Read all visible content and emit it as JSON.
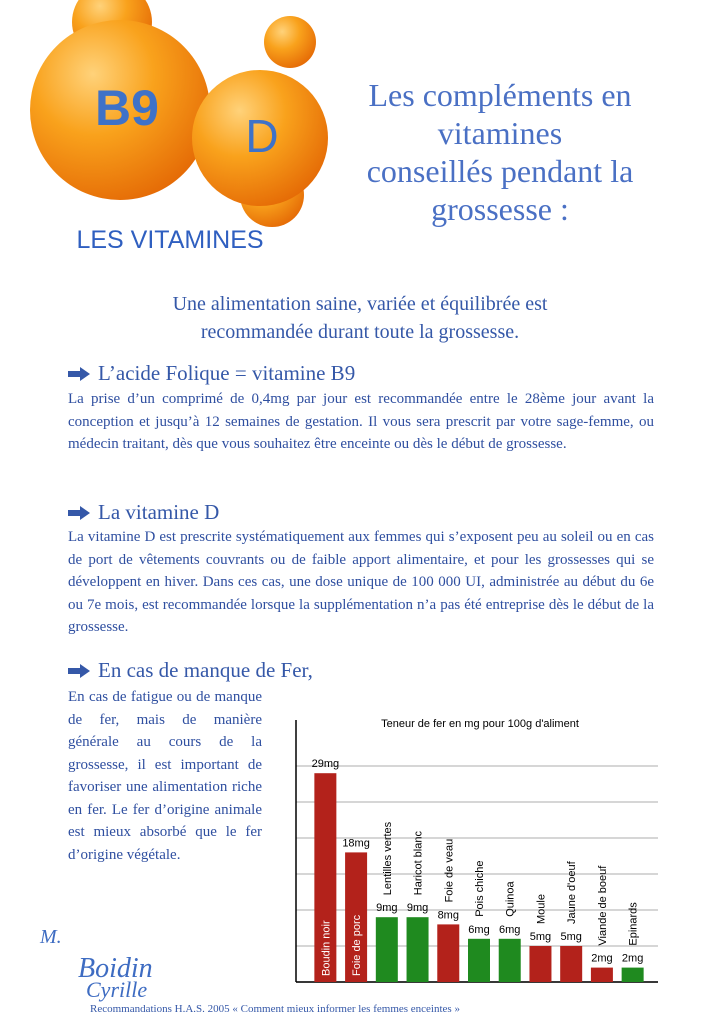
{
  "logo": {
    "b9": "B9",
    "d": "D",
    "caption": "LES VITAMINES"
  },
  "title_lines": [
    "Les compléments en",
    "vitamines",
    "conseillés pendant la",
    "grossesse :"
  ],
  "intro": "Une alimentation saine, variée et équilibrée est recommandée durant toute la grossesse.",
  "sections": [
    {
      "heading": "L’acide Folique = vitamine B9",
      "text": "La prise d’un comprimé de 0,4mg par jour est recommandée entre le 28ème jour avant la conception et jusqu’à 12 semaines de gestation. Il vous sera prescrit par votre sage-femme, ou médecin traitant, dès que vous souhaitez être enceinte ou dès le début de grossesse."
    },
    {
      "heading": "La vitamine D",
      "text": "La vitamine D est prescrite systématiquement aux femmes qui s’exposent peu au soleil ou en cas de port de vêtements couvrants ou de faible apport alimentaire, et pour les grossesses qui se développent en hiver. Dans ces cas, une dose unique de 100 000 UI, administrée au début du 6e ou 7e mois, est recommandée lorsque la supplémentation n’a pas été entreprise dès le début de la grossesse."
    },
    {
      "heading": "En cas de manque de Fer,",
      "text": "En cas de fatigue ou de manque de fer, mais de manière générale au cours de la grossesse, il est important de favoriser une alimentation riche en fer. Le fer d’origine animale est mieux absorbé que le fer d’origine végétale."
    }
  ],
  "chart_data": {
    "type": "bar",
    "title": "Teneur de fer en mg pour 100g d'aliment",
    "categories": [
      "Boudin noir",
      "Foie de porc",
      "Lentilles vertes",
      "Haricot blanc",
      "Foie de veau",
      "Pois chiche",
      "Quinoa",
      "Moule",
      "Jaune d'oeuf",
      "Viande de boeuf",
      "Epinards"
    ],
    "values": [
      29,
      18,
      9,
      9,
      8,
      6,
      6,
      5,
      5,
      2,
      2
    ],
    "value_labels": [
      "29mg",
      "18mg",
      "9mg",
      "9mg",
      "8mg",
      "6mg",
      "6mg",
      "5mg",
      "5mg",
      "2mg",
      "2mg"
    ],
    "colors": [
      "#b3221b",
      "#b3221b",
      "#1f8a1f",
      "#1f8a1f",
      "#b3221b",
      "#1f8a1f",
      "#1f8a1f",
      "#b3221b",
      "#b3221b",
      "#b3221b",
      "#1f8a1f"
    ],
    "ylim": [
      0,
      30
    ],
    "yticks": [
      0,
      5,
      10,
      15,
      20,
      25,
      30
    ],
    "grid": true
  },
  "signature": {
    "initial": "M.",
    "line1": "Boidin",
    "line2": "Cyrille"
  },
  "footer": "Recommandations H.A.S. 2005 « Comment mieux informer les femmes enceintes »"
}
